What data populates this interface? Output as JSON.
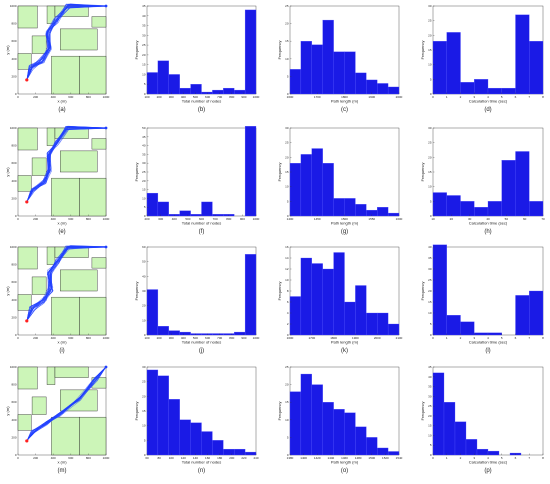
{
  "colors": {
    "bar_fill": "#1a1ae6",
    "bar_edge": "#5555ff",
    "obstacle_fill": "#ccf5b8",
    "obstacle_edge": "#222222",
    "path_color": "#1f3fff",
    "start_color": "#ff2020"
  },
  "chart_data": [
    {
      "type": "map",
      "caption": "(a)",
      "xlabel": "x (m)",
      "ylabel": "y (m)",
      "xticks": [
        "0",
        "200",
        "400",
        "600",
        "800",
        "1000"
      ],
      "yticks": [
        "0",
        "200",
        "400",
        "600",
        "800",
        "1000"
      ],
      "xlim": [
        0,
        1000
      ],
      "ylim": [
        0,
        1000
      ]
    },
    {
      "type": "bar",
      "caption": "(b)",
      "xlabel": "Total number of nodes",
      "ylabel": "Frequency",
      "xticks": [
        "100",
        "200",
        "300",
        "400",
        "500",
        "600",
        "700",
        "800",
        "900",
        "1000"
      ],
      "yticks": [
        "0",
        "5",
        "10",
        "15",
        "20",
        "25",
        "30",
        "35",
        "40",
        "45"
      ],
      "ylim": [
        0,
        45
      ],
      "values": [
        11,
        17,
        10,
        3,
        5,
        1,
        2,
        3,
        2,
        43
      ]
    },
    {
      "type": "bar",
      "caption": "(c)",
      "xlabel": "Path length (m)",
      "ylabel": "Frequency",
      "xticks": [
        "1600",
        "1700",
        "1800",
        "1900",
        "2000"
      ],
      "yticks": [
        "0",
        "5",
        "10",
        "15",
        "20",
        "25"
      ],
      "ylim": [
        0,
        25
      ],
      "values": [
        7,
        15,
        14,
        21,
        12,
        12,
        6,
        4,
        3,
        2
      ]
    },
    {
      "type": "bar",
      "caption": "(d)",
      "xlabel": "Calculation time (sec)",
      "ylabel": "Frequency",
      "xticks": [
        "0",
        "1",
        "2",
        "3",
        "4",
        "5",
        "6",
        "7",
        "8"
      ],
      "yticks": [
        "0",
        "5",
        "10",
        "15",
        "20",
        "25",
        "30"
      ],
      "ylim": [
        0,
        30
      ],
      "values": [
        18,
        21,
        4,
        5,
        2,
        2,
        27,
        18
      ]
    },
    {
      "type": "map",
      "caption": "(e)",
      "xlabel": "x (m)",
      "ylabel": "y (m)",
      "xticks": [
        "0",
        "200",
        "400",
        "600",
        "800",
        "1000"
      ],
      "yticks": [
        "0",
        "200",
        "400",
        "600",
        "800",
        "1000"
      ],
      "xlim": [
        0,
        1000
      ],
      "ylim": [
        0,
        1000
      ]
    },
    {
      "type": "bar",
      "caption": "(f)",
      "xlabel": "Total number of nodes",
      "ylabel": "Frequency",
      "xticks": [
        "200",
        "300",
        "400",
        "500",
        "600",
        "700",
        "800",
        "900",
        "1000"
      ],
      "yticks": [
        "0",
        "5",
        "10",
        "15",
        "20",
        "25",
        "30",
        "35",
        "40",
        "45",
        "50"
      ],
      "ylim": [
        0,
        50
      ],
      "values": [
        13,
        8,
        1,
        3,
        1,
        8,
        1,
        1,
        0,
        51
      ]
    },
    {
      "type": "bar",
      "caption": "(g)",
      "xlabel": "Path length (m)",
      "ylabel": "Frequency",
      "xticks": [
        "1400",
        "1450",
        "1500",
        "1550",
        "1600"
      ],
      "yticks": [
        "0",
        "5",
        "10",
        "15",
        "20",
        "25",
        "30"
      ],
      "ylim": [
        0,
        30
      ],
      "values": [
        18,
        21,
        23,
        18,
        6,
        6,
        4,
        2,
        3,
        1
      ]
    },
    {
      "type": "bar",
      "caption": "(h)",
      "xlabel": "Calculation time (sec)",
      "ylabel": "Frequency",
      "xticks": [
        "10",
        "20",
        "30",
        "40",
        "50",
        "60",
        "70"
      ],
      "yticks": [
        "0",
        "5",
        "10",
        "15",
        "20",
        "25",
        "30"
      ],
      "ylim": [
        0,
        30
      ],
      "values": [
        8,
        7,
        5,
        3,
        5,
        19,
        22,
        5
      ]
    },
    {
      "type": "map",
      "caption": "(i)",
      "xlabel": "x (m)",
      "ylabel": "y (m)",
      "xticks": [
        "0",
        "200",
        "400",
        "600",
        "800",
        "1000"
      ],
      "yticks": [
        "0",
        "200",
        "400",
        "600",
        "800",
        "1000"
      ],
      "xlim": [
        0,
        1000
      ],
      "ylim": [
        0,
        1000
      ]
    },
    {
      "type": "bar",
      "caption": "(j)",
      "xlabel": "Total number of nodes",
      "ylabel": "Frequency",
      "xticks": [
        "100",
        "200",
        "300",
        "400",
        "500",
        "600",
        "700",
        "800",
        "900",
        "1000"
      ],
      "yticks": [
        "0",
        "10",
        "20",
        "30",
        "40",
        "50",
        "60"
      ],
      "ylim": [
        0,
        60
      ],
      "values": [
        31,
        6,
        3,
        2,
        1,
        1,
        1,
        1,
        2,
        55
      ]
    },
    {
      "type": "bar",
      "caption": "(k)",
      "xlabel": "Path length (m)",
      "ylabel": "Frequency",
      "xticks": [
        "1600",
        "1700",
        "1800",
        "1900",
        "2000",
        "2100"
      ],
      "yticks": [
        "0",
        "2",
        "4",
        "6",
        "8",
        "10",
        "12",
        "14",
        "16"
      ],
      "ylim": [
        0,
        16
      ],
      "values": [
        7,
        14,
        13,
        12,
        15,
        6,
        9,
        4,
        4,
        2
      ]
    },
    {
      "type": "bar",
      "caption": "(l)",
      "xlabel": "Calculation time (sec)",
      "ylabel": "Frequency",
      "xticks": [
        "0",
        "1",
        "2",
        "3",
        "4",
        "5",
        "6",
        "7",
        "8"
      ],
      "yticks": [
        "0",
        "5",
        "10",
        "15",
        "20",
        "25",
        "30",
        "35",
        "40"
      ],
      "ylim": [
        0,
        40
      ],
      "values": [
        41,
        9,
        6,
        1,
        1,
        0,
        18,
        20
      ]
    },
    {
      "type": "map",
      "caption": "(m)",
      "xlabel": "x (m)",
      "ylabel": "y (m)",
      "xticks": [
        "0",
        "200",
        "400",
        "600",
        "800",
        "1000"
      ],
      "yticks": [
        "0",
        "200",
        "400",
        "600",
        "800",
        "1000"
      ],
      "xlim": [
        0,
        1000
      ],
      "ylim": [
        0,
        1000
      ]
    },
    {
      "type": "bar",
      "caption": "(n)",
      "xlabel": "Total number of nodes",
      "ylabel": "Frequency",
      "xticks": [
        "60",
        "80",
        "100",
        "120",
        "140",
        "160",
        "180",
        "200",
        "220",
        "240"
      ],
      "yticks": [
        "0",
        "5",
        "10",
        "15",
        "20",
        "25",
        "30"
      ],
      "ylim": [
        0,
        30
      ],
      "values": [
        29,
        27,
        19,
        12,
        11,
        8,
        5,
        2,
        2,
        1
      ]
    },
    {
      "type": "bar",
      "caption": "(o)",
      "xlabel": "Path length (m)",
      "ylabel": "Frequency",
      "xticks": [
        "1380",
        "1400",
        "1420",
        "1440",
        "1460",
        "1480",
        "1500",
        "1520",
        "1540"
      ],
      "yticks": [
        "0",
        "5",
        "10",
        "15",
        "20",
        "25"
      ],
      "ylim": [
        0,
        25
      ],
      "values": [
        18,
        23,
        20,
        15,
        13,
        12,
        8,
        5,
        2,
        1
      ]
    },
    {
      "type": "bar",
      "caption": "(p)",
      "xlabel": "Calculation time (sec)",
      "ylabel": "Frequency",
      "xticks": [
        "0",
        "1",
        "2",
        "3",
        "4",
        "5",
        "6",
        "7",
        "8"
      ],
      "yticks": [
        "0",
        "5",
        "10",
        "15",
        "20",
        "25",
        "30",
        "35",
        "40",
        "45"
      ],
      "ylim": [
        0,
        45
      ],
      "values": [
        42,
        27,
        17,
        8,
        3,
        2,
        0,
        1,
        0,
        0
      ]
    }
  ]
}
